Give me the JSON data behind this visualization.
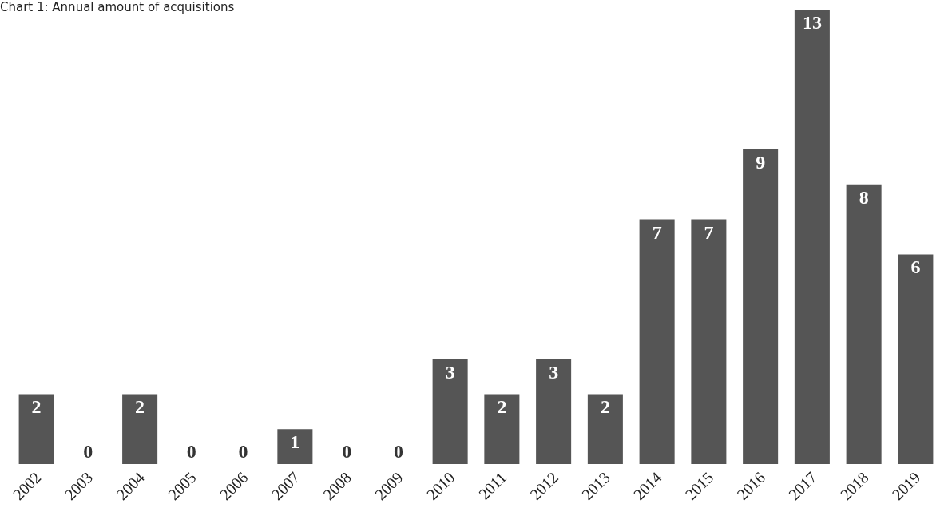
{
  "chart_data": {
    "type": "bar",
    "title": "Chart 1: Annual amount of acquisitions",
    "categories": [
      "2002",
      "2003",
      "2004",
      "2005",
      "2006",
      "2007",
      "2008",
      "2009",
      "2010",
      "2011",
      "2012",
      "2013",
      "2014",
      "2015",
      "2016",
      "2017",
      "2018",
      "2019"
    ],
    "values": [
      2,
      0,
      2,
      0,
      0,
      1,
      0,
      0,
      3,
      2,
      3,
      2,
      7,
      7,
      9,
      13,
      8,
      6
    ],
    "color": "#555555",
    "data_labels": true
  }
}
